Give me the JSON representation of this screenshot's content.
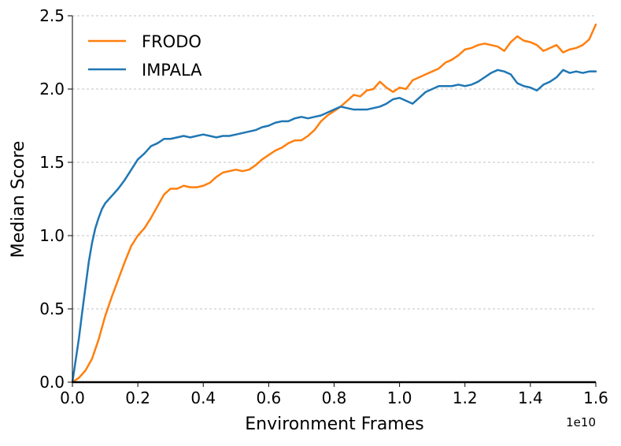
{
  "chart_data": {
    "type": "line",
    "xlabel": "Environment Frames",
    "ylabel": "Median Score",
    "x_exponent_label": "1e10",
    "xlim": [
      0.0,
      1.6
    ],
    "ylim": [
      0.0,
      2.5
    ],
    "x_ticks": [
      "0.0",
      "0.2",
      "0.4",
      "0.6",
      "0.8",
      "1.0",
      "1.2",
      "1.4",
      "1.6"
    ],
    "y_ticks": [
      "0.0",
      "0.5",
      "1.0",
      "1.5",
      "2.0",
      "2.5"
    ],
    "grid": "horizontal dashed",
    "legend_position": "top-left",
    "series": [
      {
        "name": "FRODO",
        "color": "#ff7f0e",
        "points": [
          [
            0.0,
            0.0
          ],
          [
            0.02,
            0.03
          ],
          [
            0.04,
            0.08
          ],
          [
            0.06,
            0.16
          ],
          [
            0.08,
            0.29
          ],
          [
            0.1,
            0.45
          ],
          [
            0.12,
            0.58
          ],
          [
            0.14,
            0.7
          ],
          [
            0.16,
            0.82
          ],
          [
            0.18,
            0.93
          ],
          [
            0.2,
            1.0
          ],
          [
            0.22,
            1.05
          ],
          [
            0.24,
            1.12
          ],
          [
            0.26,
            1.2
          ],
          [
            0.28,
            1.28
          ],
          [
            0.3,
            1.32
          ],
          [
            0.32,
            1.32
          ],
          [
            0.34,
            1.34
          ],
          [
            0.36,
            1.33
          ],
          [
            0.38,
            1.33
          ],
          [
            0.4,
            1.34
          ],
          [
            0.42,
            1.36
          ],
          [
            0.44,
            1.4
          ],
          [
            0.46,
            1.43
          ],
          [
            0.48,
            1.44
          ],
          [
            0.5,
            1.45
          ],
          [
            0.52,
            1.44
          ],
          [
            0.54,
            1.45
          ],
          [
            0.56,
            1.48
          ],
          [
            0.58,
            1.52
          ],
          [
            0.6,
            1.55
          ],
          [
            0.62,
            1.58
          ],
          [
            0.64,
            1.6
          ],
          [
            0.66,
            1.63
          ],
          [
            0.68,
            1.65
          ],
          [
            0.7,
            1.65
          ],
          [
            0.72,
            1.68
          ],
          [
            0.74,
            1.72
          ],
          [
            0.76,
            1.78
          ],
          [
            0.78,
            1.82
          ],
          [
            0.8,
            1.85
          ],
          [
            0.82,
            1.88
          ],
          [
            0.84,
            1.92
          ],
          [
            0.86,
            1.96
          ],
          [
            0.88,
            1.95
          ],
          [
            0.9,
            1.99
          ],
          [
            0.92,
            2.0
          ],
          [
            0.94,
            2.05
          ],
          [
            0.96,
            2.01
          ],
          [
            0.98,
            1.98
          ],
          [
            1.0,
            2.01
          ],
          [
            1.02,
            2.0
          ],
          [
            1.04,
            2.06
          ],
          [
            1.06,
            2.08
          ],
          [
            1.08,
            2.1
          ],
          [
            1.1,
            2.12
          ],
          [
            1.12,
            2.14
          ],
          [
            1.14,
            2.18
          ],
          [
            1.16,
            2.2
          ],
          [
            1.18,
            2.23
          ],
          [
            1.2,
            2.27
          ],
          [
            1.22,
            2.28
          ],
          [
            1.24,
            2.3
          ],
          [
            1.26,
            2.31
          ],
          [
            1.28,
            2.3
          ],
          [
            1.3,
            2.29
          ],
          [
            1.32,
            2.26
          ],
          [
            1.34,
            2.32
          ],
          [
            1.36,
            2.36
          ],
          [
            1.38,
            2.33
          ],
          [
            1.4,
            2.32
          ],
          [
            1.42,
            2.3
          ],
          [
            1.44,
            2.26
          ],
          [
            1.46,
            2.28
          ],
          [
            1.48,
            2.3
          ],
          [
            1.5,
            2.25
          ],
          [
            1.52,
            2.27
          ],
          [
            1.54,
            2.28
          ],
          [
            1.56,
            2.3
          ],
          [
            1.58,
            2.34
          ],
          [
            1.6,
            2.44
          ]
        ]
      },
      {
        "name": "IMPALA",
        "color": "#1f77b4",
        "points": [
          [
            0.0,
            0.0
          ],
          [
            0.01,
            0.15
          ],
          [
            0.02,
            0.3
          ],
          [
            0.03,
            0.48
          ],
          [
            0.04,
            0.65
          ],
          [
            0.05,
            0.82
          ],
          [
            0.06,
            0.95
          ],
          [
            0.07,
            1.05
          ],
          [
            0.08,
            1.12
          ],
          [
            0.09,
            1.18
          ],
          [
            0.1,
            1.22
          ],
          [
            0.12,
            1.27
          ],
          [
            0.14,
            1.32
          ],
          [
            0.16,
            1.38
          ],
          [
            0.18,
            1.45
          ],
          [
            0.2,
            1.52
          ],
          [
            0.22,
            1.56
          ],
          [
            0.24,
            1.61
          ],
          [
            0.26,
            1.63
          ],
          [
            0.28,
            1.66
          ],
          [
            0.3,
            1.66
          ],
          [
            0.32,
            1.67
          ],
          [
            0.34,
            1.68
          ],
          [
            0.36,
            1.67
          ],
          [
            0.38,
            1.68
          ],
          [
            0.4,
            1.69
          ],
          [
            0.42,
            1.68
          ],
          [
            0.44,
            1.67
          ],
          [
            0.46,
            1.68
          ],
          [
            0.48,
            1.68
          ],
          [
            0.5,
            1.69
          ],
          [
            0.52,
            1.7
          ],
          [
            0.54,
            1.71
          ],
          [
            0.56,
            1.72
          ],
          [
            0.58,
            1.74
          ],
          [
            0.6,
            1.75
          ],
          [
            0.62,
            1.77
          ],
          [
            0.64,
            1.78
          ],
          [
            0.66,
            1.78
          ],
          [
            0.68,
            1.8
          ],
          [
            0.7,
            1.81
          ],
          [
            0.72,
            1.8
          ],
          [
            0.74,
            1.81
          ],
          [
            0.76,
            1.82
          ],
          [
            0.78,
            1.84
          ],
          [
            0.8,
            1.86
          ],
          [
            0.82,
            1.88
          ],
          [
            0.84,
            1.87
          ],
          [
            0.86,
            1.86
          ],
          [
            0.88,
            1.86
          ],
          [
            0.9,
            1.86
          ],
          [
            0.92,
            1.87
          ],
          [
            0.94,
            1.88
          ],
          [
            0.96,
            1.9
          ],
          [
            0.98,
            1.93
          ],
          [
            1.0,
            1.94
          ],
          [
            1.02,
            1.92
          ],
          [
            1.04,
            1.9
          ],
          [
            1.06,
            1.94
          ],
          [
            1.08,
            1.98
          ],
          [
            1.1,
            2.0
          ],
          [
            1.12,
            2.02
          ],
          [
            1.14,
            2.02
          ],
          [
            1.16,
            2.02
          ],
          [
            1.18,
            2.03
          ],
          [
            1.2,
            2.02
          ],
          [
            1.22,
            2.03
          ],
          [
            1.24,
            2.05
          ],
          [
            1.26,
            2.08
          ],
          [
            1.28,
            2.11
          ],
          [
            1.3,
            2.13
          ],
          [
            1.32,
            2.12
          ],
          [
            1.34,
            2.1
          ],
          [
            1.36,
            2.04
          ],
          [
            1.38,
            2.02
          ],
          [
            1.4,
            2.01
          ],
          [
            1.42,
            1.99
          ],
          [
            1.44,
            2.03
          ],
          [
            1.46,
            2.05
          ],
          [
            1.48,
            2.08
          ],
          [
            1.5,
            2.13
          ],
          [
            1.52,
            2.11
          ],
          [
            1.54,
            2.12
          ],
          [
            1.56,
            2.11
          ],
          [
            1.58,
            2.12
          ],
          [
            1.6,
            2.12
          ]
        ]
      }
    ]
  }
}
